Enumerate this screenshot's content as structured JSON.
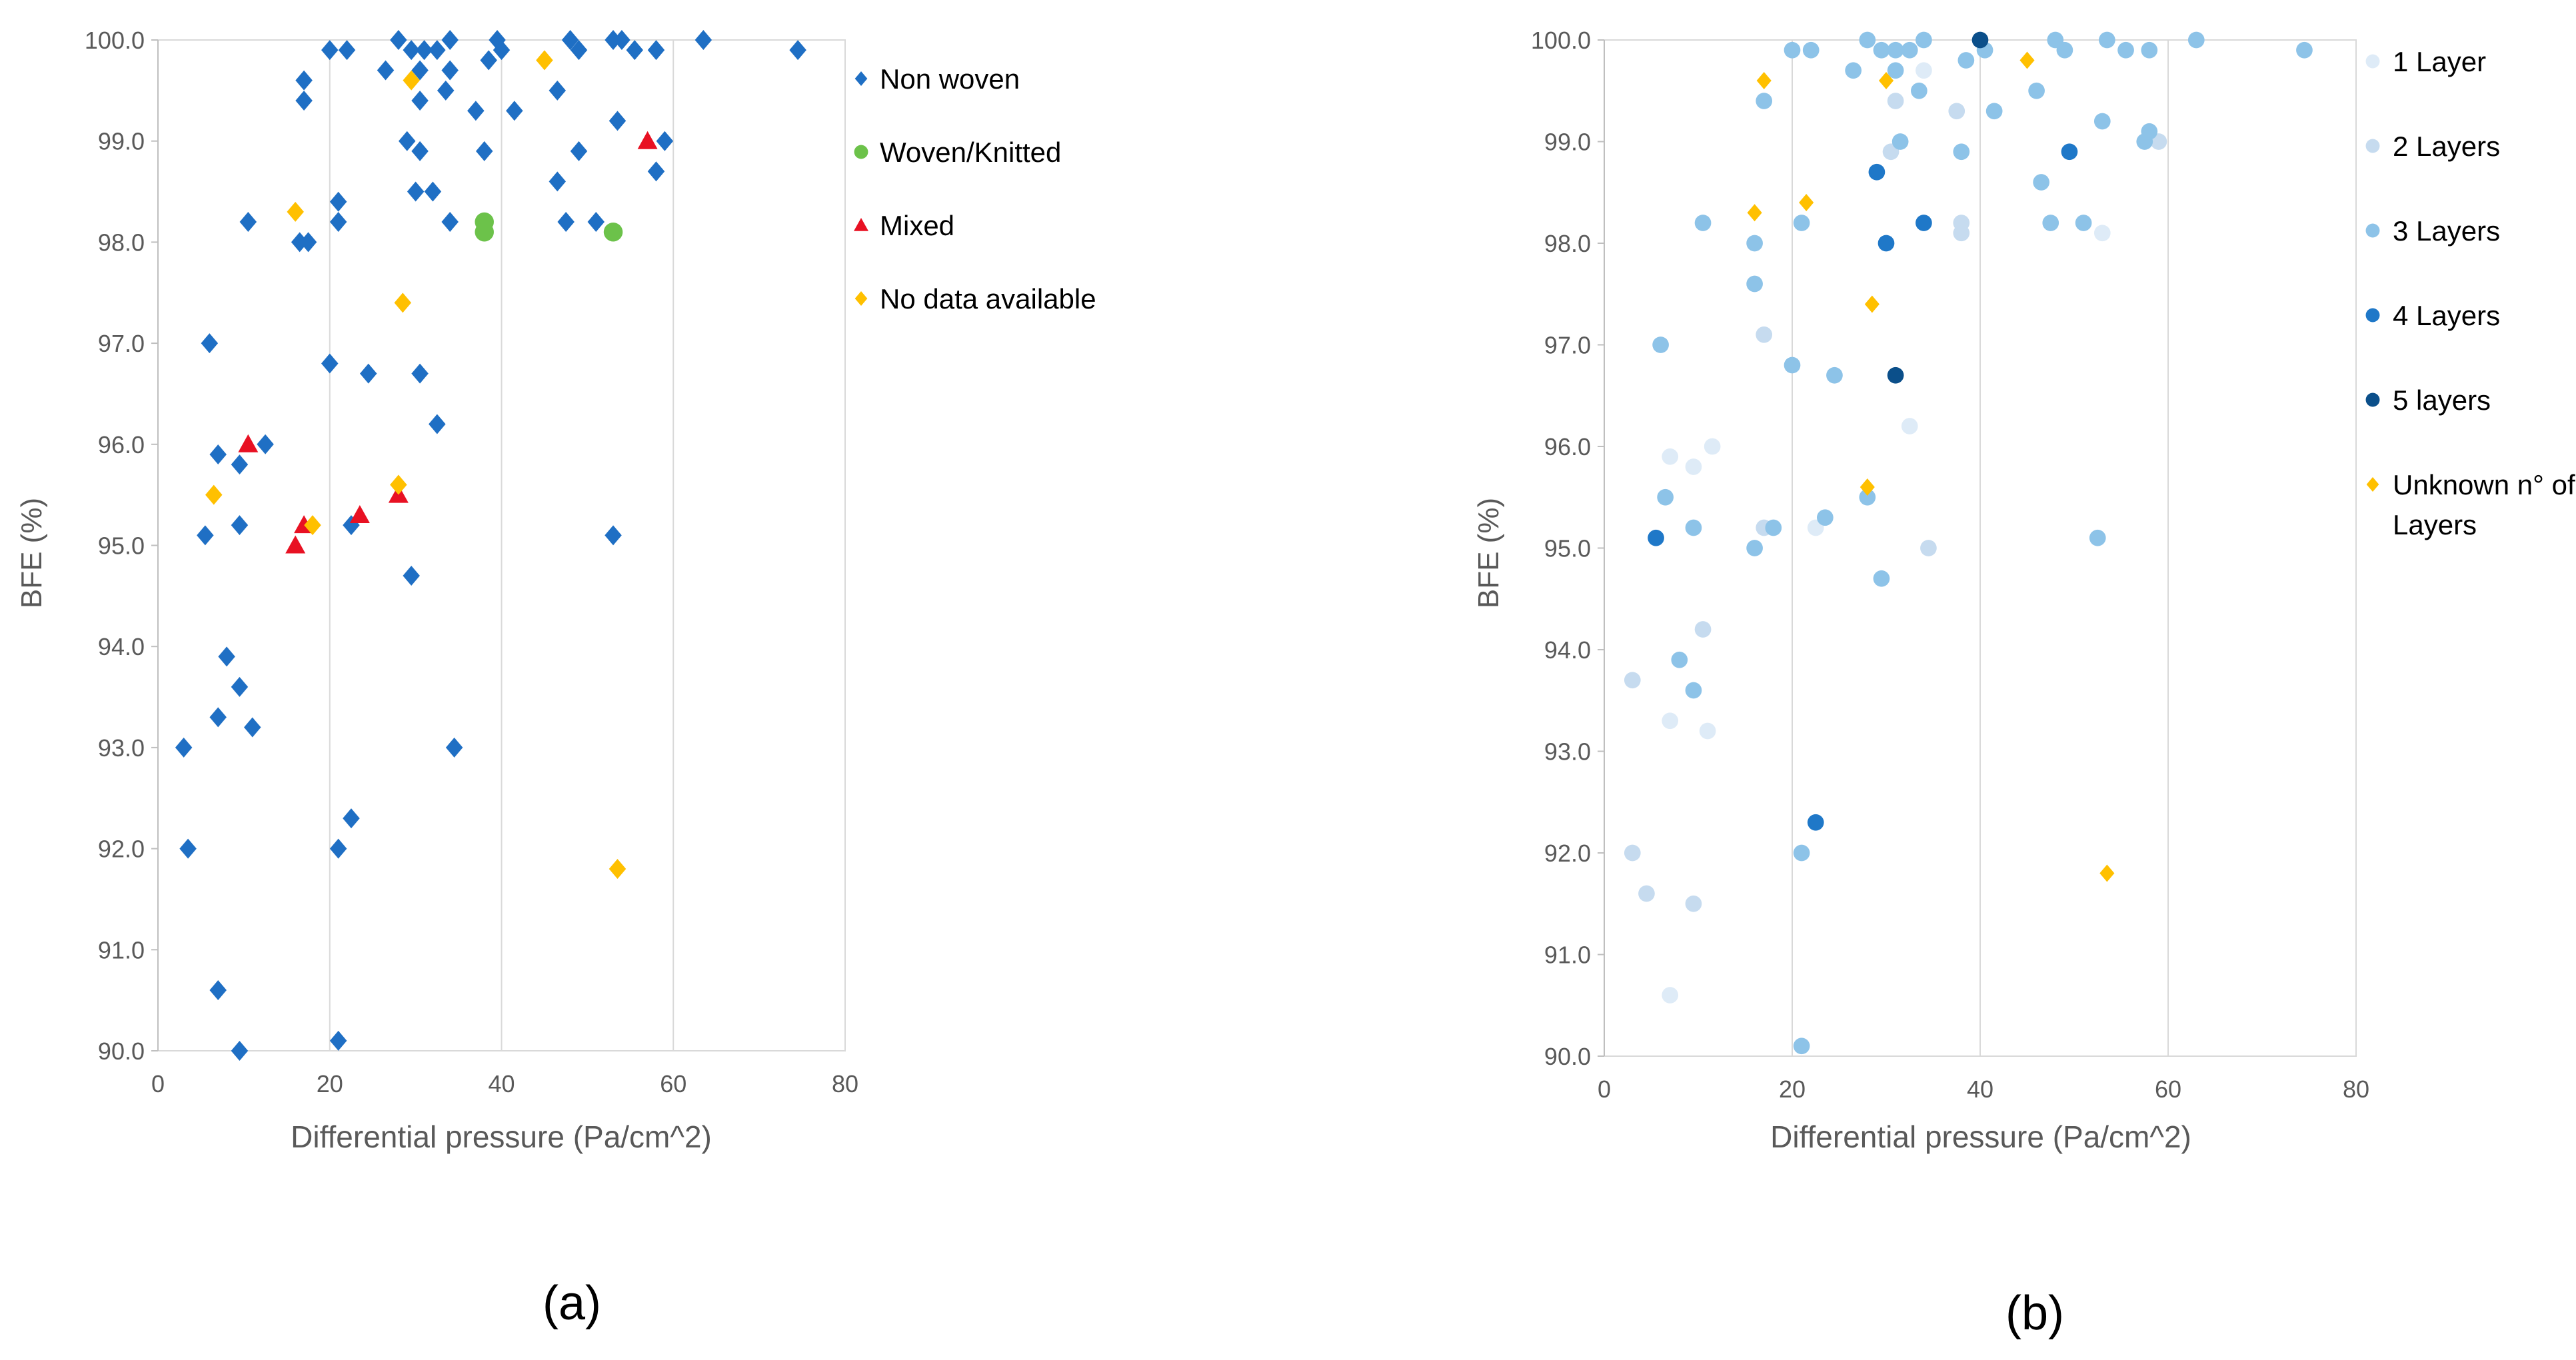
{
  "chart_data": [
    {
      "type": "scatter",
      "panel_label": "(a)",
      "xlabel": "Differential pressure (Pa/cm^2)",
      "ylabel": "BFE (%)",
      "xlim": [
        0,
        80
      ],
      "ylim": [
        90,
        100
      ],
      "x_ticks": [
        "0",
        "20",
        "40",
        "60",
        "80"
      ],
      "y_ticks": [
        "90.0",
        "91.0",
        "92.0",
        "93.0",
        "94.0",
        "95.0",
        "96.0",
        "97.0",
        "98.0",
        "99.0",
        "100.0"
      ],
      "grid": "vertical",
      "legend_position": "right",
      "series": [
        {
          "name": "Non woven",
          "marker": "diamond",
          "color": "#1f6fc4",
          "points": [
            [
              20,
              99.9
            ],
            [
              22,
              99.9
            ],
            [
              28,
              100
            ],
            [
              29.5,
              99.9
            ],
            [
              31,
              99.9
            ],
            [
              32.5,
              99.9
            ],
            [
              34,
              100
            ],
            [
              39.5,
              100
            ],
            [
              40,
              99.9
            ],
            [
              48,
              100
            ],
            [
              49,
              99.9
            ],
            [
              53,
              100
            ],
            [
              54,
              100
            ],
            [
              55.5,
              99.9
            ],
            [
              58,
              99.9
            ],
            [
              63.5,
              100
            ],
            [
              74.5,
              99.9
            ],
            [
              26.5,
              99.7
            ],
            [
              30.5,
              99.7
            ],
            [
              34,
              99.7
            ],
            [
              17,
              99.6
            ],
            [
              33.5,
              99.5
            ],
            [
              46.5,
              99.5
            ],
            [
              17,
              99.4
            ],
            [
              30.5,
              99.4
            ],
            [
              38.5,
              99.8
            ],
            [
              37,
              99.3
            ],
            [
              41.5,
              99.3
            ],
            [
              53.5,
              99.2
            ],
            [
              29,
              99
            ],
            [
              30.5,
              98.9
            ],
            [
              38,
              98.9
            ],
            [
              49,
              98.9
            ],
            [
              59,
              99
            ],
            [
              30,
              98.5
            ],
            [
              32,
              98.5
            ],
            [
              46.5,
              98.6
            ],
            [
              58,
              98.7
            ],
            [
              21,
              98.4
            ],
            [
              10.5,
              98.2
            ],
            [
              21,
              98.2
            ],
            [
              34,
              98.2
            ],
            [
              47.5,
              98.2
            ],
            [
              51,
              98.2
            ],
            [
              16.5,
              98
            ],
            [
              17.5,
              98
            ],
            [
              6,
              97
            ],
            [
              20,
              96.8
            ],
            [
              24.5,
              96.7
            ],
            [
              30.5,
              96.7
            ],
            [
              7,
              95.9
            ],
            [
              12.5,
              96
            ],
            [
              9.5,
              95.8
            ],
            [
              32.5,
              96.2
            ],
            [
              5.5,
              95.1
            ],
            [
              9.5,
              95.2
            ],
            [
              22.5,
              95.2
            ],
            [
              53,
              95.1
            ],
            [
              29.5,
              94.7
            ],
            [
              8,
              93.9
            ],
            [
              9.5,
              93.6
            ],
            [
              7,
              93.3
            ],
            [
              11,
              93.2
            ],
            [
              3,
              93
            ],
            [
              34.5,
              93
            ],
            [
              3.5,
              92
            ],
            [
              21,
              92
            ],
            [
              22.5,
              92.3
            ],
            [
              7,
              90.6
            ],
            [
              9.5,
              90
            ],
            [
              21,
              90.1
            ]
          ]
        },
        {
          "name": "Woven/Knitted",
          "marker": "circle",
          "color": "#6cc24a",
          "points": [
            [
              38,
              98.2
            ],
            [
              38,
              98.1
            ],
            [
              53,
              98.1
            ]
          ]
        },
        {
          "name": "Mixed",
          "marker": "triangle",
          "color": "#e81123",
          "points": [
            [
              57,
              99
            ],
            [
              10.5,
              96
            ],
            [
              17,
              95.2
            ],
            [
              16,
              95
            ],
            [
              23.5,
              95.3
            ],
            [
              28,
              95.5
            ]
          ]
        },
        {
          "name": "No data available",
          "marker": "diamond",
          "color": "#ffc000",
          "points": [
            [
              16,
              98.3
            ],
            [
              29.5,
              99.6
            ],
            [
              45,
              99.8
            ],
            [
              28.5,
              97.4
            ],
            [
              6.5,
              95.5
            ],
            [
              18,
              95.2
            ],
            [
              28,
              95.6
            ],
            [
              53.5,
              91.8
            ]
          ]
        }
      ]
    },
    {
      "type": "scatter",
      "panel_label": "(b)",
      "xlabel": "Differential pressure (Pa/cm^2)",
      "ylabel": "BFE (%)",
      "xlim": [
        0,
        80
      ],
      "ylim": [
        90,
        100
      ],
      "x_ticks": [
        "0",
        "20",
        "40",
        "60",
        "80"
      ],
      "y_ticks": [
        "90.0",
        "91.0",
        "92.0",
        "93.0",
        "94.0",
        "95.0",
        "96.0",
        "97.0",
        "98.0",
        "99.0",
        "100.0"
      ],
      "grid": "vertical",
      "legend_position": "right",
      "series": [
        {
          "name": "1 Layer",
          "marker": "circle",
          "color": "#deebf7",
          "points": [
            [
              34,
              99.7
            ],
            [
              7,
              95.9
            ],
            [
              11.5,
              96
            ],
            [
              9.5,
              95.8
            ],
            [
              32.5,
              96.2
            ],
            [
              22.5,
              95.2
            ],
            [
              53,
              98.1
            ],
            [
              7,
              93.3
            ],
            [
              11,
              93.2
            ],
            [
              7,
              90.6
            ]
          ]
        },
        {
          "name": "2 Layers",
          "marker": "circle",
          "color": "#c6dbef",
          "points": [
            [
              30.5,
              98.9
            ],
            [
              31,
              99.4
            ],
            [
              37.5,
              99.3
            ],
            [
              38,
              98.2
            ],
            [
              38,
              98.1
            ],
            [
              17,
              97.1
            ],
            [
              17,
              95.2
            ],
            [
              34.5,
              95
            ],
            [
              3,
              93.7
            ],
            [
              10.5,
              94.2
            ],
            [
              3,
              92
            ],
            [
              4.5,
              91.6
            ],
            [
              9.5,
              91.5
            ],
            [
              59,
              99
            ]
          ]
        },
        {
          "name": "3 Layers",
          "marker": "circle",
          "color": "#8dc3e8",
          "points": [
            [
              20,
              99.9
            ],
            [
              22,
              99.9
            ],
            [
              28,
              100
            ],
            [
              29.5,
              99.9
            ],
            [
              31,
              99.9
            ],
            [
              32.5,
              99.9
            ],
            [
              34,
              100
            ],
            [
              40.5,
              99.9
            ],
            [
              48,
              100
            ],
            [
              49,
              99.9
            ],
            [
              53.5,
              100
            ],
            [
              55.5,
              99.9
            ],
            [
              58,
              99.9
            ],
            [
              63,
              100
            ],
            [
              74.5,
              99.9
            ],
            [
              26.5,
              99.7
            ],
            [
              31,
              99.7
            ],
            [
              33.5,
              99.5
            ],
            [
              46,
              99.5
            ],
            [
              17,
              99.4
            ],
            [
              38.5,
              99.8
            ],
            [
              41.5,
              99.3
            ],
            [
              53,
              99.2
            ],
            [
              31.5,
              99
            ],
            [
              38,
              98.9
            ],
            [
              46.5,
              98.6
            ],
            [
              57.5,
              99
            ],
            [
              58,
              99.1
            ],
            [
              10.5,
              98.2
            ],
            [
              21,
              98.2
            ],
            [
              47.5,
              98.2
            ],
            [
              51,
              98.2
            ],
            [
              16,
              98
            ],
            [
              16,
              97.6
            ],
            [
              6,
              97
            ],
            [
              20,
              96.8
            ],
            [
              24.5,
              96.7
            ],
            [
              6.5,
              95.5
            ],
            [
              9.5,
              95.2
            ],
            [
              18,
              95.2
            ],
            [
              23.5,
              95.3
            ],
            [
              28,
              95.5
            ],
            [
              16,
              95
            ],
            [
              52.5,
              95.1
            ],
            [
              29.5,
              94.7
            ],
            [
              8,
              93.9
            ],
            [
              9.5,
              93.6
            ],
            [
              21,
              92
            ],
            [
              21,
              90.1
            ]
          ]
        },
        {
          "name": "4 Layers",
          "marker": "circle",
          "color": "#1f78c8",
          "points": [
            [
              29,
              98.7
            ],
            [
              34,
              98.2
            ],
            [
              30,
              98
            ],
            [
              49.5,
              98.9
            ],
            [
              5.5,
              95.1
            ],
            [
              22.5,
              92.3
            ]
          ]
        },
        {
          "name": "5 layers",
          "marker": "circle",
          "color": "#0b4f8a",
          "points": [
            [
              40,
              100
            ],
            [
              31,
              96.7
            ]
          ]
        },
        {
          "name": "Unknown n° of Layers",
          "marker": "diamond",
          "color": "#ffc000",
          "points": [
            [
              17,
              99.6
            ],
            [
              30,
              99.6
            ],
            [
              45,
              99.8
            ],
            [
              16,
              98.3
            ],
            [
              21.5,
              98.4
            ],
            [
              28.5,
              97.4
            ],
            [
              28,
              95.6
            ],
            [
              53.5,
              91.8
            ]
          ]
        }
      ]
    }
  ]
}
